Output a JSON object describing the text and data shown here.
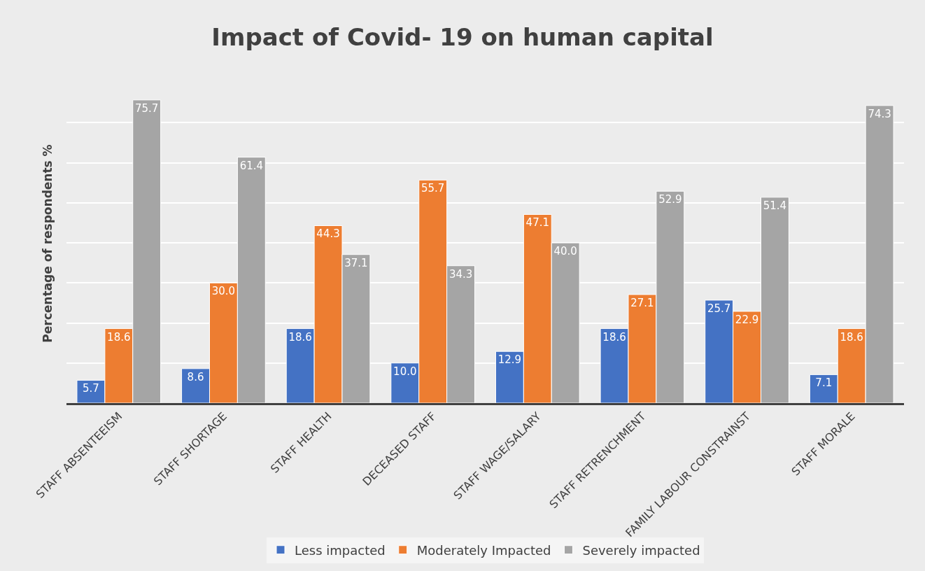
{
  "chart_data": {
    "type": "bar",
    "title": "Impact of Covid- 19 on human capital",
    "ylabel": "Percentage of respondents %",
    "categories": [
      "STAFF ABSENTEEISM",
      "STAFF SHORTAGE",
      "STAFF HEALTH",
      "DECEASED STAFF",
      "STAFF WAGE/SALARY",
      "STAFF RETRENCHMENT",
      "FAMILY LABOUR CONSTRAINST",
      "STAFF MORALE"
    ],
    "series": [
      {
        "name": "Less impacted",
        "color": "#4472c4",
        "values": [
          5.7,
          8.6,
          18.6,
          10.0,
          12.9,
          18.6,
          25.7,
          7.1
        ],
        "value_labels": [
          "5.7",
          "8.6",
          "18.6",
          "10.0",
          "12.9",
          "18.6",
          "25.7",
          "7.1"
        ]
      },
      {
        "name": "Moderately Impacted",
        "color": "#ed7d31",
        "values": [
          18.6,
          30.0,
          44.3,
          55.7,
          47.1,
          27.1,
          22.9,
          18.6
        ],
        "value_labels": [
          "18.6",
          "30.0",
          "44.3",
          "55.7",
          "47.1",
          "27.1",
          "22.9",
          "18.6"
        ]
      },
      {
        "name": "Severely impacted",
        "color": "#a5a5a5",
        "values": [
          75.7,
          61.4,
          37.1,
          34.3,
          40.0,
          52.9,
          51.4,
          74.3
        ],
        "value_labels": [
          "75.7",
          "61.4",
          "37.1",
          "34.3",
          "40.0",
          "52.9",
          "51.4",
          "74.3"
        ]
      }
    ],
    "yticks": [
      {
        "value": 0,
        "label": null
      },
      {
        "value": 10,
        "label": null
      },
      {
        "value": 20,
        "label": null
      },
      {
        "value": 30,
        "label": null
      },
      {
        "value": 40,
        "label": null
      },
      {
        "value": 50,
        "label": null
      },
      {
        "value": 60,
        "label": null
      },
      {
        "value": 70,
        "label": null
      }
    ],
    "grid": "y",
    "legend": "bottom",
    "tick_labels": "x"
  }
}
